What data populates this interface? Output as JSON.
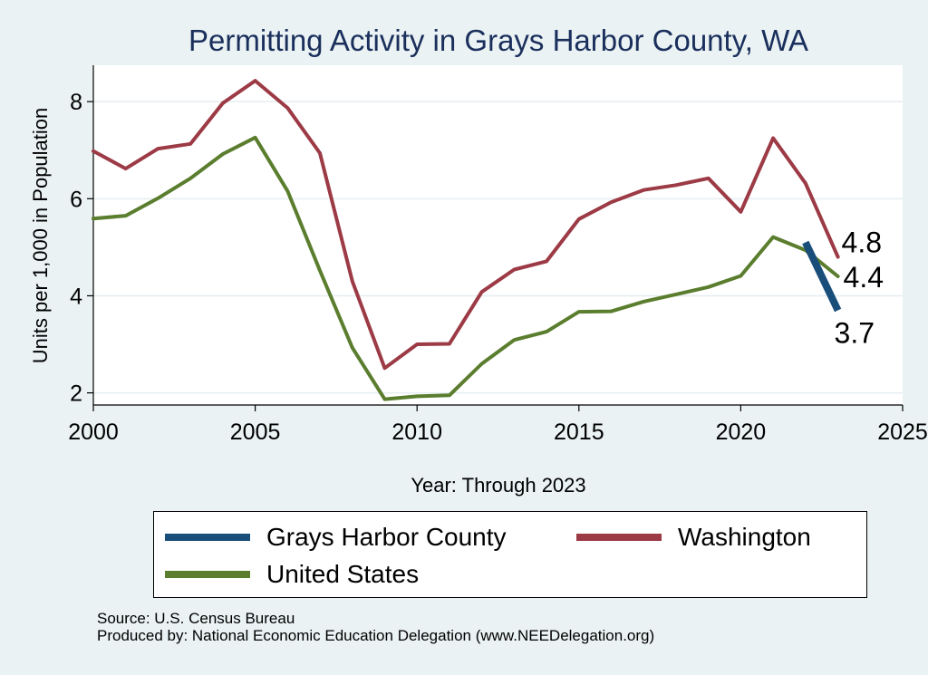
{
  "chart_data": {
    "type": "line",
    "title": "Permitting Activity in Grays Harbor County, WA",
    "xlabel": "Year: Through 2023",
    "ylabel": "Units per 1,000 in Population",
    "xlim": [
      2000,
      2025
    ],
    "ylim": [
      1.75,
      8.75
    ],
    "xticks": [
      2000,
      2005,
      2010,
      2015,
      2020,
      2025
    ],
    "yticks": [
      2,
      4,
      6,
      8
    ],
    "grid": "horizontal",
    "legend_position": "bottom",
    "series": [
      {
        "name": "Grays Harbor County",
        "color": "#1a4e7a",
        "x": [
          2022,
          2023
        ],
        "y": [
          5.1,
          3.7
        ],
        "end_label": "3.7"
      },
      {
        "name": "Washington",
        "color": "#9c3a45",
        "x": [
          2000,
          2001,
          2002,
          2003,
          2004,
          2005,
          2006,
          2007,
          2008,
          2009,
          2010,
          2011,
          2012,
          2013,
          2014,
          2015,
          2016,
          2017,
          2018,
          2019,
          2020,
          2021,
          2022,
          2023
        ],
        "y": [
          6.98,
          6.62,
          7.03,
          7.13,
          7.97,
          8.43,
          7.87,
          6.94,
          4.3,
          2.51,
          3.0,
          3.01,
          4.08,
          4.54,
          4.71,
          5.58,
          5.93,
          6.18,
          6.28,
          6.42,
          5.73,
          7.25,
          6.32,
          4.8
        ],
        "end_label": "4.8"
      },
      {
        "name": "United States",
        "color": "#5a7d2e",
        "x": [
          2000,
          2001,
          2002,
          2003,
          2004,
          2005,
          2006,
          2007,
          2008,
          2009,
          2010,
          2011,
          2012,
          2013,
          2014,
          2015,
          2016,
          2017,
          2018,
          2019,
          2020,
          2021,
          2022,
          2023
        ],
        "y": [
          5.59,
          5.65,
          6.01,
          6.42,
          6.92,
          7.26,
          6.16,
          4.52,
          2.93,
          1.87,
          1.93,
          1.95,
          2.6,
          3.09,
          3.26,
          3.67,
          3.68,
          3.88,
          4.03,
          4.18,
          4.41,
          5.21,
          4.94,
          4.4
        ],
        "end_label": "4.4"
      }
    ]
  },
  "legend": {
    "items": [
      {
        "label": "Grays Harbor County",
        "color": "#1a4e7a"
      },
      {
        "label": "Washington",
        "color": "#9c3a45"
      },
      {
        "label": "United States",
        "color": "#5a7d2e"
      }
    ]
  },
  "footer": {
    "source": "Source: U.S. Census Bureau",
    "produced_by": "Produced by: National Economic Education Delegation (www.NEEDelegation.org)"
  }
}
